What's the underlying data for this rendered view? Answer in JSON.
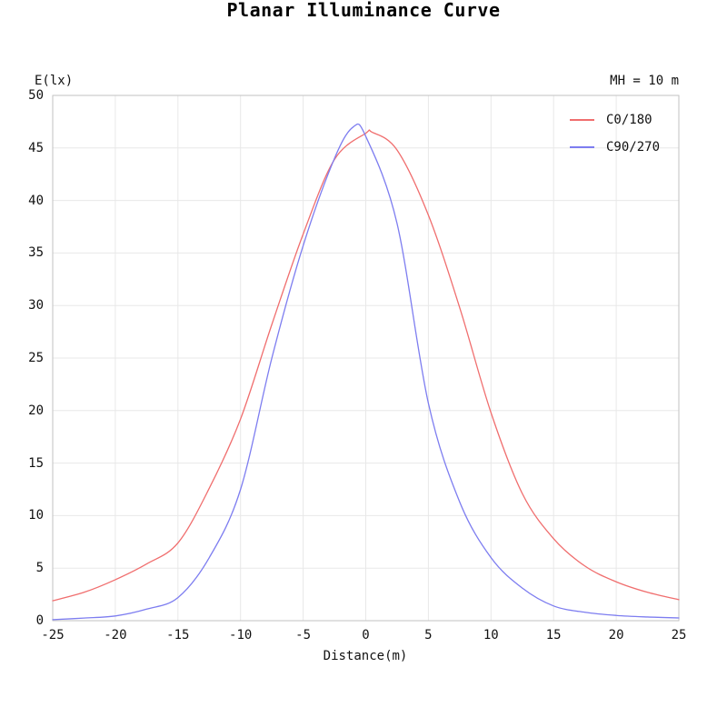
{
  "chart_data": {
    "type": "line",
    "title": "Planar Illuminance Curve",
    "ylabel": "E(lx)",
    "xlabel": "Distance(m)",
    "annotation": "MH = 10 m",
    "xlim": [
      -25,
      25
    ],
    "ylim": [
      0,
      50
    ],
    "x_ticks": [
      "-25",
      "-20",
      "-15",
      "-10",
      "-5",
      "0",
      "5",
      "10",
      "15",
      "20",
      "25"
    ],
    "y_ticks": [
      "0",
      "5",
      "10",
      "15",
      "20",
      "25",
      "30",
      "35",
      "40",
      "45",
      "50"
    ],
    "grid": true,
    "legend_position": "upper right",
    "colors": {
      "grid": "#e8e8e8",
      "border": "#c2c2c2",
      "text": "#111111",
      "series_red": "#f06e6e",
      "series_blue": "#7d7df0"
    },
    "series": [
      {
        "name": "C0/180",
        "color": "#f06e6e",
        "points": [
          [
            -25,
            1.9
          ],
          [
            -22.5,
            2.7
          ],
          [
            -20,
            3.9
          ],
          [
            -17.5,
            5.4
          ],
          [
            -15,
            7.4
          ],
          [
            -12.5,
            12.6
          ],
          [
            -10,
            19.2
          ],
          [
            -7.5,
            28.2
          ],
          [
            -5,
            36.8
          ],
          [
            -2.5,
            43.9
          ],
          [
            0,
            46.4
          ],
          [
            0.5,
            46.5
          ],
          [
            2.5,
            44.8
          ],
          [
            5,
            38.6
          ],
          [
            7.5,
            29.8
          ],
          [
            10,
            19.8
          ],
          [
            12.5,
            12.1
          ],
          [
            15,
            7.8
          ],
          [
            17.5,
            5.2
          ],
          [
            20,
            3.7
          ],
          [
            22.5,
            2.7
          ],
          [
            25,
            2.0
          ]
        ]
      },
      {
        "name": "C90/270",
        "color": "#7d7df0",
        "points": [
          [
            -25,
            0.1
          ],
          [
            -22.5,
            0.25
          ],
          [
            -20,
            0.45
          ],
          [
            -17.5,
            1.1
          ],
          [
            -15,
            2.2
          ],
          [
            -12.5,
            6.0
          ],
          [
            -10,
            12.5
          ],
          [
            -7.5,
            25.0
          ],
          [
            -5,
            35.7
          ],
          [
            -2.5,
            44.0
          ],
          [
            -1,
            47.0
          ],
          [
            0,
            46.1
          ],
          [
            2.5,
            37.8
          ],
          [
            5,
            20.7
          ],
          [
            7.5,
            11.3
          ],
          [
            10,
            6.0
          ],
          [
            12.5,
            3.1
          ],
          [
            15,
            1.4
          ],
          [
            17.5,
            0.8
          ],
          [
            20,
            0.5
          ],
          [
            22.5,
            0.35
          ],
          [
            25,
            0.26
          ]
        ]
      }
    ]
  }
}
